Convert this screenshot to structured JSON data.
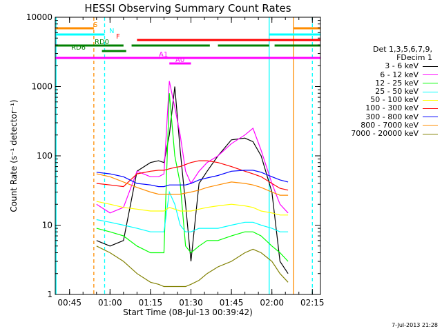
{
  "chart_data": {
    "type": "line",
    "title": "HESSI Observing Summary Count Rates",
    "xlabel": "Start Time (08-Jul-13 00:39:42)",
    "ylabel": "Count Rate (s⁻¹ detector⁻¹)",
    "xlim": [
      "00:39:42",
      "02:18:00"
    ],
    "ylim": [
      1,
      10000
    ],
    "yscale": "log",
    "x_ticks": [
      "00:45",
      "01:00",
      "01:15",
      "01:30",
      "01:45",
      "02:00",
      "02:15"
    ],
    "y_ticks": [
      "1",
      "10",
      "100",
      "1000",
      "10000"
    ],
    "grid": false,
    "legend_placement": "right",
    "legend_header": [
      "Det 1,3,5,6,7,9,",
      "FDecim 1"
    ],
    "series": [
      {
        "name": "3 - 6 keV",
        "color": "#000000",
        "x": [
          "00:55",
          "01:00",
          "01:05",
          "01:10",
          "01:15",
          "01:18",
          "01:20",
          "01:22",
          "01:24",
          "01:26",
          "01:28",
          "01:30",
          "01:33",
          "01:36",
          "01:40",
          "01:45",
          "01:50",
          "01:53",
          "01:56",
          "02:00",
          "02:03",
          "02:06"
        ],
        "y": [
          6,
          5,
          6,
          60,
          80,
          85,
          80,
          200,
          1000,
          120,
          20,
          3,
          40,
          60,
          100,
          170,
          180,
          160,
          100,
          30,
          3,
          2
        ]
      },
      {
        "name": "6 - 12 keV",
        "color": "#ff00ff",
        "x": [
          "00:55",
          "01:00",
          "01:05",
          "01:10",
          "01:15",
          "01:18",
          "01:20",
          "01:22",
          "01:24",
          "01:26",
          "01:28",
          "01:30",
          "01:33",
          "01:36",
          "01:40",
          "01:45",
          "01:50",
          "01:53",
          "01:56",
          "02:00",
          "02:03",
          "02:06"
        ],
        "y": [
          20,
          15,
          18,
          60,
          50,
          50,
          55,
          1200,
          500,
          200,
          60,
          40,
          60,
          80,
          100,
          150,
          200,
          250,
          120,
          40,
          20,
          15
        ]
      },
      {
        "name": "12 - 25 keV",
        "color": "#00ff00",
        "x": [
          "00:55",
          "01:00",
          "01:05",
          "01:10",
          "01:15",
          "01:18",
          "01:20",
          "01:22",
          "01:24",
          "01:26",
          "01:28",
          "01:30",
          "01:33",
          "01:36",
          "01:40",
          "01:45",
          "01:50",
          "01:53",
          "01:56",
          "02:00",
          "02:03",
          "02:06"
        ],
        "y": [
          9,
          8,
          7,
          5,
          4,
          4,
          4,
          800,
          100,
          40,
          5,
          4,
          5,
          6,
          6,
          7,
          8,
          8,
          7,
          5,
          4,
          3
        ]
      },
      {
        "name": "25 - 50 keV",
        "color": "#00ffff",
        "x": [
          "00:55",
          "01:00",
          "01:05",
          "01:10",
          "01:15",
          "01:18",
          "01:20",
          "01:22",
          "01:24",
          "01:26",
          "01:28",
          "01:30",
          "01:33",
          "01:36",
          "01:40",
          "01:45",
          "01:50",
          "01:53",
          "01:56",
          "02:00",
          "02:03",
          "02:06"
        ],
        "y": [
          12,
          11,
          10,
          9,
          8,
          8,
          8,
          30,
          20,
          10,
          8,
          8,
          9,
          9,
          9,
          10,
          11,
          11,
          10,
          9,
          8,
          8
        ]
      },
      {
        "name": "50 - 100 keV",
        "color": "#ffff00",
        "x": [
          "00:55",
          "01:00",
          "01:05",
          "01:10",
          "01:15",
          "01:18",
          "01:20",
          "01:22",
          "01:24",
          "01:26",
          "01:28",
          "01:30",
          "01:33",
          "01:36",
          "01:40",
          "01:45",
          "01:50",
          "01:53",
          "01:56",
          "02:00",
          "02:03",
          "02:06"
        ],
        "y": [
          22,
          20,
          18,
          17,
          16,
          16,
          16,
          18,
          17,
          16,
          16,
          16,
          17,
          18,
          19,
          20,
          19,
          18,
          16,
          15,
          14,
          14
        ]
      },
      {
        "name": "100 - 300 keV",
        "color": "#ff0000",
        "x": [
          "00:55",
          "01:00",
          "01:05",
          "01:10",
          "01:15",
          "01:18",
          "01:20",
          "01:22",
          "01:24",
          "01:26",
          "01:28",
          "01:30",
          "01:33",
          "01:36",
          "01:40",
          "01:45",
          "01:50",
          "01:53",
          "01:56",
          "02:00",
          "02:03",
          "02:06"
        ],
        "y": [
          40,
          38,
          36,
          55,
          60,
          62,
          62,
          65,
          68,
          70,
          75,
          80,
          85,
          85,
          80,
          70,
          60,
          55,
          50,
          40,
          34,
          32
        ]
      },
      {
        "name": "300 - 800 keV",
        "color": "#0000ff",
        "x": [
          "00:55",
          "01:00",
          "01:05",
          "01:10",
          "01:15",
          "01:18",
          "01:20",
          "01:22",
          "01:24",
          "01:26",
          "01:28",
          "01:30",
          "01:33",
          "01:36",
          "01:40",
          "01:45",
          "01:50",
          "01:53",
          "01:56",
          "02:00",
          "02:03",
          "02:06"
        ],
        "y": [
          58,
          55,
          50,
          40,
          38,
          36,
          36,
          38,
          38,
          38,
          38,
          40,
          45,
          48,
          52,
          60,
          62,
          62,
          58,
          50,
          45,
          42
        ]
      },
      {
        "name": "800 - 7000 keV",
        "color": "#ff8c00",
        "x": [
          "00:55",
          "01:00",
          "01:05",
          "01:10",
          "01:15",
          "01:18",
          "01:20",
          "01:22",
          "01:24",
          "01:26",
          "01:28",
          "01:30",
          "01:33",
          "01:36",
          "01:40",
          "01:45",
          "01:50",
          "01:53",
          "01:56",
          "02:00",
          "02:03",
          "02:06"
        ],
        "y": [
          55,
          50,
          42,
          35,
          30,
          28,
          28,
          28,
          28,
          28,
          29,
          30,
          32,
          35,
          38,
          42,
          40,
          38,
          35,
          30,
          27,
          27
        ]
      },
      {
        "name": "7000 - 20000 keV",
        "color": "#808000",
        "x": [
          "00:55",
          "01:00",
          "01:05",
          "01:10",
          "01:15",
          "01:18",
          "01:20",
          "01:22",
          "01:24",
          "01:26",
          "01:28",
          "01:30",
          "01:33",
          "01:36",
          "01:40",
          "01:45",
          "01:50",
          "01:53",
          "01:56",
          "02:00",
          "02:03",
          "02:06"
        ],
        "y": [
          5,
          4,
          3,
          2,
          1.5,
          1.4,
          1.3,
          1.3,
          1.3,
          1.3,
          1.3,
          1.4,
          1.6,
          2,
          2.5,
          3,
          4,
          4.5,
          4,
          3,
          2,
          1.5
        ]
      }
    ],
    "flag_bars": [
      {
        "label": "S",
        "color": "#ff8c00",
        "segments": [
          [
            "00:39:42",
            "00:54"
          ],
          [
            "02:08",
            "02:18"
          ]
        ]
      },
      {
        "label": "N",
        "color": "#00ffff",
        "segments": [
          [
            "00:39:42",
            "00:58"
          ],
          [
            "01:59",
            "02:18"
          ]
        ]
      },
      {
        "label": "F",
        "color": "#ff0000",
        "segments": [
          [
            "01:10",
            "02:18"
          ]
        ]
      },
      {
        "label": "RD0",
        "color": "#008000",
        "segments": [
          [
            "00:39:42",
            "01:05"
          ],
          [
            "01:08",
            "01:37"
          ],
          [
            "01:40",
            "01:59"
          ],
          [
            "02:01",
            "02:18"
          ]
        ]
      },
      {
        "label": "RD6",
        "color": "#008000",
        "segments": [
          [
            "00:57",
            "01:06"
          ]
        ]
      },
      {
        "label": "A1",
        "color": "#ff00ff",
        "segments": [
          [
            "00:39:42",
            "02:18"
          ]
        ]
      },
      {
        "label": "A0",
        "color": "#ff00ff",
        "segments": [
          [
            "01:22",
            "01:30"
          ]
        ]
      }
    ],
    "vlines": [
      {
        "x": "00:40",
        "color": "#00ffff",
        "style": "solid"
      },
      {
        "x": "00:54",
        "color": "#ff8c00",
        "style": "dashed"
      },
      {
        "x": "00:58",
        "color": "#00ffff",
        "style": "dashed"
      },
      {
        "x": "01:59",
        "color": "#00ffff",
        "style": "solid"
      },
      {
        "x": "02:08",
        "color": "#ff8c00",
        "style": "solid"
      },
      {
        "x": "02:15",
        "color": "#00ffff",
        "style": "dashed"
      }
    ]
  },
  "footer": {
    "timestamp": "7-Jul-2013 21:28"
  }
}
